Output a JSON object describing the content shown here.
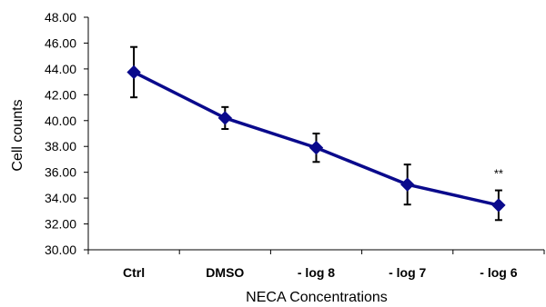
{
  "chart_data": {
    "type": "line",
    "title": "",
    "xlabel": "NECA Concentrations",
    "ylabel": "Cell counts",
    "categories": [
      "Ctrl",
      "DMSO",
      "- log 8",
      "- log 7",
      "- log 6"
    ],
    "series": [
      {
        "values": [
          43.75,
          40.2,
          37.9,
          35.05,
          33.45
        ],
        "error": [
          1.95,
          0.85,
          1.1,
          1.55,
          1.15
        ],
        "color": "#0a0a8c",
        "marker": "diamond"
      }
    ],
    "ylim": [
      30,
      48
    ],
    "yticks": [
      "30.00",
      "32.00",
      "34.00",
      "36.00",
      "38.00",
      "40.00",
      "42.00",
      "44.00",
      "46.00",
      "48.00"
    ],
    "grid": false,
    "legend": "none",
    "annotations": [
      {
        "category": "- log 6",
        "text": "**"
      }
    ]
  }
}
